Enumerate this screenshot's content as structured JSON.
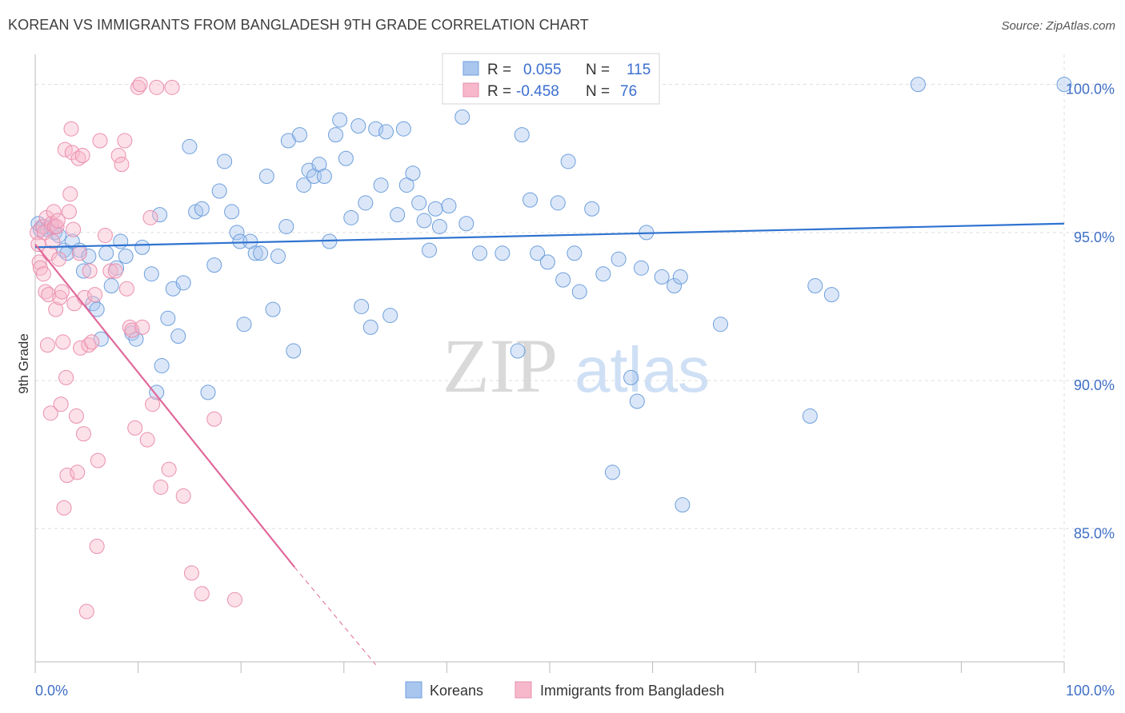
{
  "title": "KOREAN VS IMMIGRANTS FROM BANGLADESH 9TH GRADE CORRELATION CHART",
  "source": "Source: ZipAtlas.com",
  "watermark": {
    "zip": "ZIP",
    "atlas": "atlas"
  },
  "colors": {
    "blue_fill": "#a9c6ee",
    "blue_stroke": "#6e9fdc",
    "blue_line": "#2f73d0",
    "pink_fill": "#f7b8cb",
    "pink_stroke": "#ea8fae",
    "pink_line": "#e0689a",
    "tick_text": "#3f6fc6",
    "grid": "#dddddd"
  },
  "stats": [
    {
      "series": "Koreans",
      "r_label": "R =",
      "r_value": "0.055",
      "n_label": "N =",
      "n_value": "115"
    },
    {
      "series": "Immigrants from Bangladesh",
      "r_label": "R =",
      "r_value": "-0.458",
      "n_label": "N =",
      "n_value": "76"
    }
  ],
  "chart_data": {
    "type": "scatter",
    "title": "KOREAN VS IMMIGRANTS FROM BANGLADESH 9TH GRADE CORRELATION CHART",
    "xlabel": "",
    "ylabel": "9th Grade",
    "xlim": [
      0,
      100
    ],
    "ylim": [
      80.5,
      100.8
    ],
    "x_tick_labels": [
      "0.0%",
      "100.0%"
    ],
    "y_ticks": [
      {
        "value": 85,
        "label": "85.0%"
      },
      {
        "value": 90,
        "label": "90.0%"
      },
      {
        "value": 95,
        "label": "95.0%"
      },
      {
        "value": 100,
        "label": "100.0%"
      }
    ],
    "grid": true,
    "legend_position": "bottom-center",
    "series": [
      {
        "name": "Koreans",
        "color": "#a9c6ee",
        "trend": {
          "x0": 0,
          "y0": 94.5,
          "x1": 100,
          "y1": 95.3
        },
        "points": [
          [
            0.3,
            95.3
          ],
          [
            0.5,
            95.1
          ],
          [
            0.8,
            95.2
          ],
          [
            1.2,
            95.1
          ],
          [
            1.6,
            95.2
          ],
          [
            1.9,
            95.0
          ],
          [
            2.3,
            94.9
          ],
          [
            2.8,
            94.4
          ],
          [
            3.1,
            94.3
          ],
          [
            3.6,
            94.7
          ],
          [
            4.3,
            94.4
          ],
          [
            4.7,
            93.7
          ],
          [
            5.2,
            94.2
          ],
          [
            5.6,
            92.6
          ],
          [
            6.0,
            92.4
          ],
          [
            6.4,
            91.4
          ],
          [
            6.9,
            94.3
          ],
          [
            7.4,
            93.2
          ],
          [
            7.9,
            93.8
          ],
          [
            8.3,
            94.7
          ],
          [
            8.8,
            94.2
          ],
          [
            9.4,
            91.6
          ],
          [
            9.8,
            91.4
          ],
          [
            10.4,
            94.5
          ],
          [
            11.3,
            93.6
          ],
          [
            11.8,
            89.6
          ],
          [
            12.1,
            95.6
          ],
          [
            12.3,
            90.5
          ],
          [
            12.9,
            92.1
          ],
          [
            13.4,
            93.1
          ],
          [
            13.9,
            91.5
          ],
          [
            14.4,
            93.3
          ],
          [
            15.0,
            97.9
          ],
          [
            15.6,
            95.7
          ],
          [
            16.2,
            95.8
          ],
          [
            16.8,
            89.6
          ],
          [
            17.4,
            93.9
          ],
          [
            17.9,
            96.4
          ],
          [
            18.4,
            97.4
          ],
          [
            19.1,
            95.7
          ],
          [
            19.6,
            95.0
          ],
          [
            19.9,
            94.7
          ],
          [
            20.3,
            91.9
          ],
          [
            20.9,
            94.7
          ],
          [
            21.4,
            94.3
          ],
          [
            21.9,
            94.3
          ],
          [
            22.5,
            96.9
          ],
          [
            23.1,
            92.4
          ],
          [
            23.6,
            94.2
          ],
          [
            24.4,
            95.2
          ],
          [
            24.6,
            98.1
          ],
          [
            25.1,
            91.0
          ],
          [
            25.7,
            98.3
          ],
          [
            26.1,
            96.6
          ],
          [
            26.6,
            97.1
          ],
          [
            27.1,
            96.9
          ],
          [
            27.6,
            97.3
          ],
          [
            28.1,
            96.9
          ],
          [
            28.6,
            94.7
          ],
          [
            29.2,
            98.3
          ],
          [
            29.6,
            98.8
          ],
          [
            30.2,
            97.5
          ],
          [
            30.7,
            95.5
          ],
          [
            31.4,
            98.6
          ],
          [
            31.7,
            92.5
          ],
          [
            32.1,
            96.0
          ],
          [
            32.6,
            91.8
          ],
          [
            33.1,
            98.5
          ],
          [
            33.6,
            96.6
          ],
          [
            34.1,
            98.4
          ],
          [
            34.5,
            92.2
          ],
          [
            35.2,
            95.6
          ],
          [
            35.8,
            98.5
          ],
          [
            36.1,
            96.6
          ],
          [
            36.7,
            97.0
          ],
          [
            37.3,
            96.0
          ],
          [
            37.8,
            95.4
          ],
          [
            38.3,
            94.4
          ],
          [
            38.9,
            95.8
          ],
          [
            39.3,
            95.2
          ],
          [
            40.2,
            95.9
          ],
          [
            40.4,
            100.0
          ],
          [
            41.5,
            98.9
          ],
          [
            41.9,
            95.3
          ],
          [
            43.2,
            94.3
          ],
          [
            45.4,
            94.3
          ],
          [
            46.9,
            91.0
          ],
          [
            47.3,
            98.3
          ],
          [
            48.1,
            96.1
          ],
          [
            48.8,
            94.3
          ],
          [
            49.8,
            94.0
          ],
          [
            50.2,
            100.0
          ],
          [
            50.8,
            96.0
          ],
          [
            51.3,
            93.4
          ],
          [
            51.8,
            97.4
          ],
          [
            52.4,
            94.3
          ],
          [
            52.9,
            93.0
          ],
          [
            54.1,
            95.8
          ],
          [
            55.2,
            93.6
          ],
          [
            56.1,
            86.9
          ],
          [
            56.7,
            94.1
          ],
          [
            57.9,
            90.1
          ],
          [
            58.5,
            89.3
          ],
          [
            58.9,
            93.8
          ],
          [
            59.4,
            95.0
          ],
          [
            60.9,
            93.5
          ],
          [
            62.1,
            93.2
          ],
          [
            62.7,
            93.5
          ],
          [
            62.9,
            85.8
          ],
          [
            66.6,
            91.9
          ],
          [
            75.3,
            88.8
          ],
          [
            75.8,
            93.2
          ],
          [
            77.4,
            92.9
          ],
          [
            85.8,
            100.0
          ],
          [
            100.0,
            100.0
          ]
        ]
      },
      {
        "name": "Immigrants from Bangladesh",
        "color": "#f7b8cb",
        "trend": {
          "x0": 0,
          "y0": 94.6,
          "x1": 25.2,
          "y1": 83.7,
          "dash_x1": 33.1,
          "dash_y1": 80.4
        },
        "points": [
          [
            0.2,
            95.0
          ],
          [
            0.3,
            94.6
          ],
          [
            0.4,
            94.0
          ],
          [
            0.5,
            93.8
          ],
          [
            0.7,
            95.2
          ],
          [
            0.8,
            93.6
          ],
          [
            0.9,
            95.0
          ],
          [
            1.0,
            93.0
          ],
          [
            1.1,
            95.5
          ],
          [
            1.2,
            91.2
          ],
          [
            1.3,
            92.9
          ],
          [
            1.4,
            94.3
          ],
          [
            1.5,
            88.9
          ],
          [
            1.6,
            95.3
          ],
          [
            1.7,
            94.7
          ],
          [
            1.8,
            95.7
          ],
          [
            1.9,
            95.2
          ],
          [
            2.0,
            92.4
          ],
          [
            2.1,
            95.2
          ],
          [
            2.2,
            95.4
          ],
          [
            2.3,
            94.1
          ],
          [
            2.4,
            92.8
          ],
          [
            2.5,
            89.2
          ],
          [
            2.6,
            93.0
          ],
          [
            2.7,
            91.3
          ],
          [
            2.8,
            85.7
          ],
          [
            2.9,
            97.8
          ],
          [
            3.0,
            90.1
          ],
          [
            3.1,
            86.8
          ],
          [
            3.3,
            95.7
          ],
          [
            3.4,
            96.3
          ],
          [
            3.5,
            98.5
          ],
          [
            3.6,
            97.7
          ],
          [
            3.7,
            95.1
          ],
          [
            3.8,
            92.6
          ],
          [
            4.0,
            88.8
          ],
          [
            4.1,
            86.9
          ],
          [
            4.2,
            97.5
          ],
          [
            4.3,
            94.3
          ],
          [
            4.4,
            91.1
          ],
          [
            4.6,
            97.6
          ],
          [
            4.7,
            88.2
          ],
          [
            4.8,
            92.8
          ],
          [
            5.0,
            82.2
          ],
          [
            5.2,
            91.2
          ],
          [
            5.3,
            93.7
          ],
          [
            5.5,
            91.3
          ],
          [
            5.8,
            92.9
          ],
          [
            6.0,
            84.4
          ],
          [
            6.1,
            87.3
          ],
          [
            6.3,
            98.1
          ],
          [
            6.8,
            94.9
          ],
          [
            7.3,
            93.7
          ],
          [
            7.8,
            93.7
          ],
          [
            8.1,
            97.6
          ],
          [
            8.4,
            97.3
          ],
          [
            8.7,
            98.1
          ],
          [
            8.9,
            93.1
          ],
          [
            9.2,
            91.8
          ],
          [
            9.4,
            91.7
          ],
          [
            9.7,
            88.4
          ],
          [
            10.0,
            99.9
          ],
          [
            10.2,
            100.0
          ],
          [
            10.4,
            91.8
          ],
          [
            10.9,
            88.0
          ],
          [
            11.2,
            95.5
          ],
          [
            11.4,
            89.2
          ],
          [
            11.8,
            99.9
          ],
          [
            12.2,
            86.4
          ],
          [
            13.0,
            87.0
          ],
          [
            13.3,
            99.9
          ],
          [
            14.4,
            86.1
          ],
          [
            15.2,
            83.5
          ],
          [
            16.2,
            82.8
          ],
          [
            17.4,
            88.7
          ],
          [
            19.4,
            82.6
          ]
        ]
      }
    ]
  }
}
